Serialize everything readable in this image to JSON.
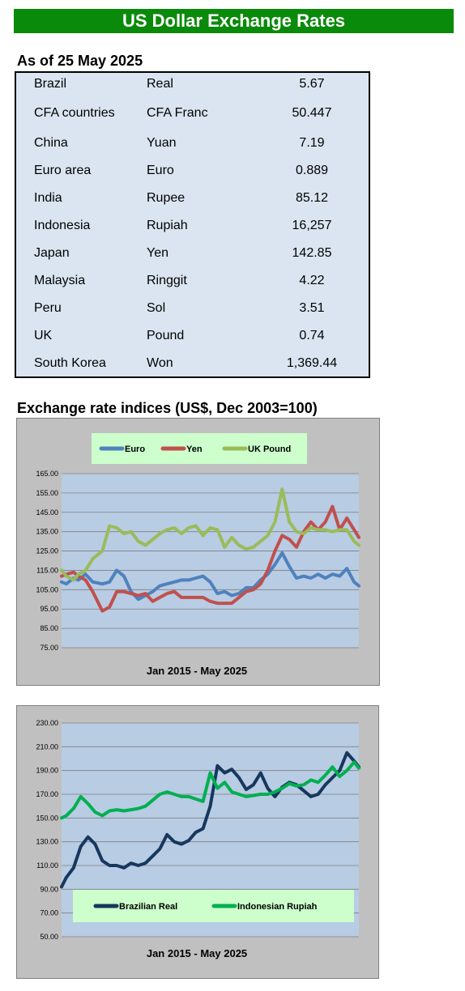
{
  "header": {
    "title": "US Dollar Exchange Rates"
  },
  "rates_section": {
    "title": "As of 25 May 2025",
    "rows": [
      {
        "country": "Brazil",
        "currency": "Real",
        "rate": "5.67"
      },
      {
        "country": "CFA countries",
        "currency": "CFA Franc",
        "rate": "50.447"
      },
      {
        "country": "China",
        "currency": "Yuan",
        "rate": "7.19"
      },
      {
        "country": "Euro area",
        "currency": "Euro",
        "rate": "0.889"
      },
      {
        "country": "India",
        "currency": "Rupee",
        "rate": "85.12"
      },
      {
        "country": "Indonesia",
        "currency": "Rupiah",
        "rate": "16,257"
      },
      {
        "country": "Japan",
        "currency": "Yen",
        "rate": "142.85"
      },
      {
        "country": "Malaysia",
        "currency": "Ringgit",
        "rate": "4.22"
      },
      {
        "country": "Peru",
        "currency": "Sol",
        "rate": "3.51"
      },
      {
        "country": "UK",
        "currency": "Pound",
        "rate": "0.74"
      },
      {
        "country": "South Korea",
        "currency": "Won",
        "rate": "1,369.44"
      }
    ]
  },
  "indices_section": {
    "title": "Exchange rate indices (US$, Dec 2003=100)"
  },
  "chart_data": [
    {
      "type": "line",
      "xlabel": "Jan 2015 - May 2025",
      "ylim": [
        75,
        165
      ],
      "yticks": [
        "165.00",
        "155.00",
        "145.00",
        "135.00",
        "125.00",
        "115.00",
        "105.00",
        "95.00",
        "85.00",
        "75.00"
      ],
      "grid": true,
      "legend": "top",
      "x_start": "2015-01",
      "x_end": "2025-05",
      "series": [
        {
          "name": "Euro",
          "color": "#4f81bd",
          "x": [
            "2015-01",
            "2015-03",
            "2015-06",
            "2015-08",
            "2015-11",
            "2016-02",
            "2016-06",
            "2016-09",
            "2016-12",
            "2017-03",
            "2017-06",
            "2017-09",
            "2017-12",
            "2018-03",
            "2018-06",
            "2018-09",
            "2018-12",
            "2019-03",
            "2019-06",
            "2019-09",
            "2019-12",
            "2020-03",
            "2020-06",
            "2020-09",
            "2020-12",
            "2021-03",
            "2021-06",
            "2021-09",
            "2021-12",
            "2022-03",
            "2022-06",
            "2022-09",
            "2022-12",
            "2023-03",
            "2023-06",
            "2023-09",
            "2023-12",
            "2024-03",
            "2024-06",
            "2024-09",
            "2024-12",
            "2025-03",
            "2025-05"
          ],
          "y": [
            109,
            108,
            111,
            110,
            113,
            109,
            108,
            109,
            115,
            112,
            104,
            100,
            102,
            104,
            107,
            108,
            109,
            110,
            110,
            111,
            112,
            109,
            103,
            104,
            102,
            103,
            106,
            106,
            110,
            113,
            118,
            124,
            117,
            111,
            112,
            111,
            113,
            111,
            113,
            112,
            116,
            109,
            107
          ]
        },
        {
          "name": "Yen",
          "color": "#c0504d",
          "x": [
            "2015-01",
            "2015-03",
            "2015-06",
            "2015-08",
            "2015-11",
            "2016-02",
            "2016-06",
            "2016-09",
            "2016-12",
            "2017-03",
            "2017-06",
            "2017-09",
            "2017-12",
            "2018-03",
            "2018-06",
            "2018-09",
            "2018-12",
            "2019-03",
            "2019-06",
            "2019-09",
            "2019-12",
            "2020-03",
            "2020-06",
            "2020-09",
            "2020-12",
            "2021-03",
            "2021-06",
            "2021-09",
            "2021-12",
            "2022-03",
            "2022-06",
            "2022-09",
            "2022-12",
            "2023-03",
            "2023-06",
            "2023-09",
            "2023-12",
            "2024-03",
            "2024-06",
            "2024-09",
            "2024-12",
            "2025-03",
            "2025-05"
          ],
          "y": [
            112,
            113,
            114,
            112,
            110,
            104,
            94,
            96,
            104,
            104,
            103,
            102,
            103,
            99,
            101,
            103,
            104,
            101,
            101,
            101,
            101,
            99,
            98,
            98,
            98,
            101,
            104,
            105,
            108,
            115,
            125,
            133,
            131,
            127,
            135,
            140,
            136,
            140,
            148,
            136,
            142,
            136,
            132
          ]
        },
        {
          "name": "UK Pound",
          "color": "#9bbb59",
          "x": [
            "2015-01",
            "2015-03",
            "2015-06",
            "2015-08",
            "2015-11",
            "2016-02",
            "2016-06",
            "2016-09",
            "2016-12",
            "2017-03",
            "2017-06",
            "2017-09",
            "2017-12",
            "2018-03",
            "2018-06",
            "2018-09",
            "2018-12",
            "2019-03",
            "2019-06",
            "2019-09",
            "2019-12",
            "2020-03",
            "2020-06",
            "2020-09",
            "2020-12",
            "2021-03",
            "2021-06",
            "2021-09",
            "2021-12",
            "2022-03",
            "2022-06",
            "2022-09",
            "2022-12",
            "2023-03",
            "2023-06",
            "2023-09",
            "2023-12",
            "2024-03",
            "2024-06",
            "2024-09",
            "2024-12",
            "2025-03",
            "2025-05"
          ],
          "y": [
            115,
            112,
            110,
            113,
            115,
            121,
            125,
            138,
            137,
            134,
            135,
            130,
            128,
            131,
            134,
            136,
            137,
            134,
            137,
            138,
            133,
            137,
            136,
            127,
            132,
            128,
            126,
            127,
            130,
            133,
            140,
            157,
            140,
            135,
            134,
            137,
            136,
            136,
            135,
            136,
            136,
            130,
            128
          ]
        }
      ]
    },
    {
      "type": "line",
      "xlabel": "Jan 2015 -  May 2025",
      "ylim": [
        50,
        230
      ],
      "yticks": [
        "230.00",
        "210.00",
        "190.00",
        "170.00",
        "150.00",
        "130.00",
        "110.00",
        "90.00",
        "70.00",
        "50.00"
      ],
      "grid": true,
      "legend": "bottom",
      "x_start": "2015-01",
      "x_end": "2025-05",
      "series": [
        {
          "name": "Brazilian Real",
          "color": "#17375e",
          "x": [
            "2015-01",
            "2015-03",
            "2015-06",
            "2015-09",
            "2015-12",
            "2016-03",
            "2016-06",
            "2016-09",
            "2016-12",
            "2017-03",
            "2017-06",
            "2017-09",
            "2017-12",
            "2018-03",
            "2018-06",
            "2018-09",
            "2018-12",
            "2019-03",
            "2019-06",
            "2019-09",
            "2019-12",
            "2020-03",
            "2020-06",
            "2020-09",
            "2020-12",
            "2021-03",
            "2021-06",
            "2021-09",
            "2021-12",
            "2022-03",
            "2022-06",
            "2022-09",
            "2022-12",
            "2023-03",
            "2023-06",
            "2023-09",
            "2023-12",
            "2024-03",
            "2024-06",
            "2024-09",
            "2024-12",
            "2025-03",
            "2025-05"
          ],
          "y": [
            92,
            100,
            108,
            126,
            134,
            128,
            114,
            110,
            110,
            108,
            112,
            110,
            112,
            118,
            124,
            136,
            130,
            128,
            131,
            138,
            141,
            160,
            194,
            188,
            191,
            184,
            174,
            178,
            188,
            175,
            168,
            176,
            180,
            178,
            173,
            168,
            170,
            178,
            184,
            190,
            205,
            198,
            193
          ]
        },
        {
          "name": "Indonesian Rupiah",
          "color": "#00b050",
          "x": [
            "2015-01",
            "2015-03",
            "2015-06",
            "2015-09",
            "2015-12",
            "2016-03",
            "2016-06",
            "2016-09",
            "2016-12",
            "2017-03",
            "2017-06",
            "2017-09",
            "2017-12",
            "2018-03",
            "2018-06",
            "2018-09",
            "2018-12",
            "2019-03",
            "2019-06",
            "2019-09",
            "2019-12",
            "2020-03",
            "2020-06",
            "2020-09",
            "2020-12",
            "2021-03",
            "2021-06",
            "2021-09",
            "2021-12",
            "2022-03",
            "2022-06",
            "2022-09",
            "2022-12",
            "2023-03",
            "2023-06",
            "2023-09",
            "2023-12",
            "2024-03",
            "2024-06",
            "2024-09",
            "2024-12",
            "2025-03",
            "2025-05"
          ],
          "y": [
            150,
            152,
            158,
            168,
            162,
            155,
            152,
            156,
            157,
            156,
            157,
            158,
            160,
            165,
            170,
            172,
            170,
            168,
            168,
            166,
            164,
            188,
            175,
            180,
            172,
            170,
            168,
            169,
            170,
            170,
            172,
            175,
            179,
            177,
            178,
            182,
            180,
            186,
            193,
            185,
            190,
            197,
            192
          ]
        }
      ]
    }
  ]
}
